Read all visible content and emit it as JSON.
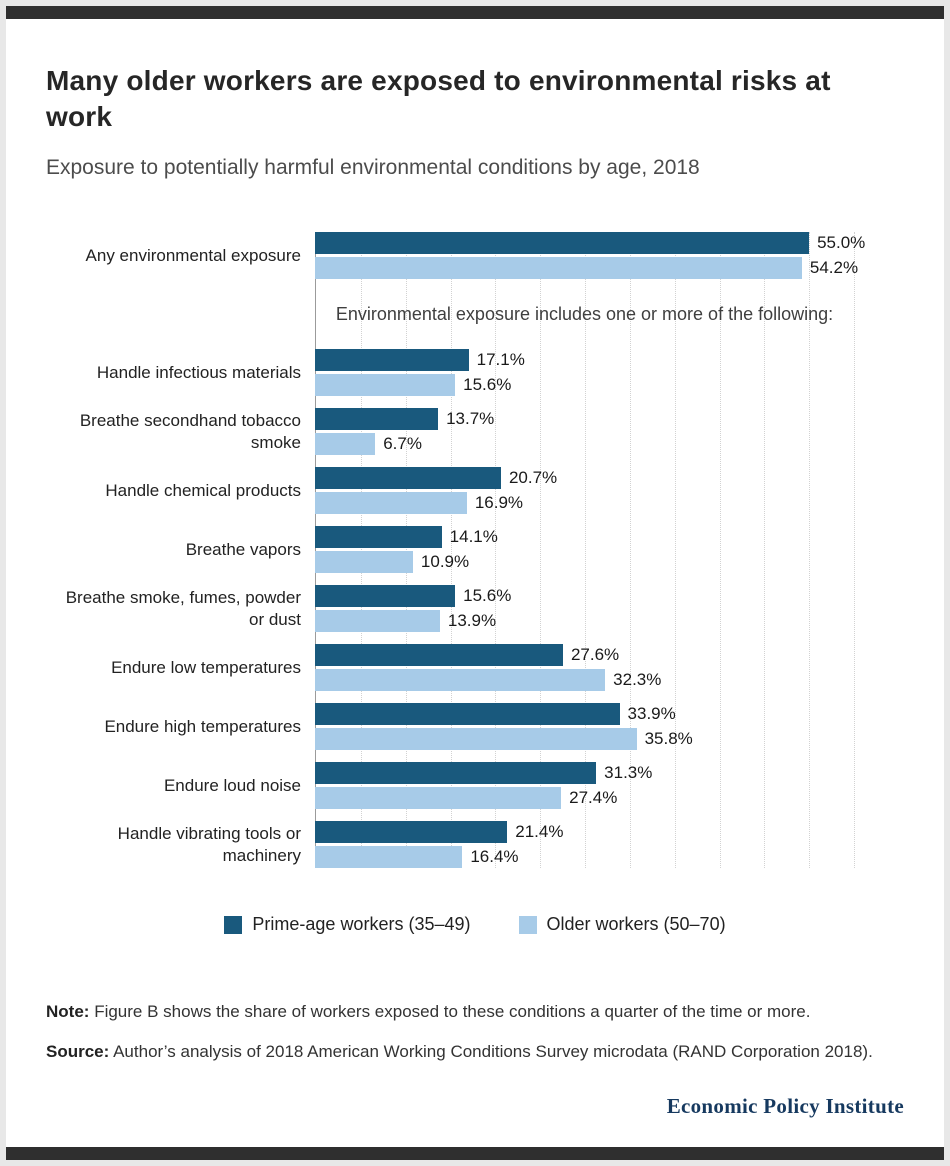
{
  "header": {
    "title": "Many older workers are exposed to environmental risks at work",
    "subtitle": "Exposure to potentially harmful environmental conditions by age, 2018"
  },
  "note": {
    "label": "Note:",
    "text": "Figure B shows the share of workers exposed to these conditions a quarter of the time or more."
  },
  "source": {
    "label": "Source:",
    "text": "Author’s analysis of 2018 American Working Conditions Survey microdata (RAND Corporation 2018)."
  },
  "footer": {
    "brand": "Economic Policy Institute"
  },
  "chart_data": {
    "type": "bar",
    "orientation": "horizontal",
    "title": "Many older workers are exposed to environmental risks at work",
    "subtitle": "Exposure to potentially harmful environmental conditions by age, 2018",
    "annotation": "Environmental exposure includes one or more of the following:",
    "annotation_after_index": 0,
    "categories": [
      "Any environmental exposure",
      "Handle infectious materials",
      "Breathe secondhand tobacco smoke",
      "Handle chemical products",
      "Breathe vapors",
      "Breathe smoke, fumes, powder or dust",
      "Endure low temperatures",
      "Endure high temperatures",
      "Endure loud noise",
      "Handle vibrating tools or machinery"
    ],
    "series": [
      {
        "name": "Prime-age workers (35–49)",
        "color": "#19597d",
        "values": [
          55.0,
          17.1,
          13.7,
          20.7,
          14.1,
          15.6,
          27.6,
          33.9,
          31.3,
          21.4
        ]
      },
      {
        "name": "Older workers (50–70)",
        "color": "#a7cbe8",
        "values": [
          54.2,
          15.6,
          6.7,
          16.9,
          10.9,
          13.9,
          32.3,
          35.8,
          27.4,
          16.4
        ]
      }
    ],
    "xlim": [
      0,
      60
    ],
    "gridline_step": 5,
    "value_suffix": "%",
    "value_decimals": 1,
    "grid": "dotted-vertical",
    "legend_position": "bottom"
  }
}
